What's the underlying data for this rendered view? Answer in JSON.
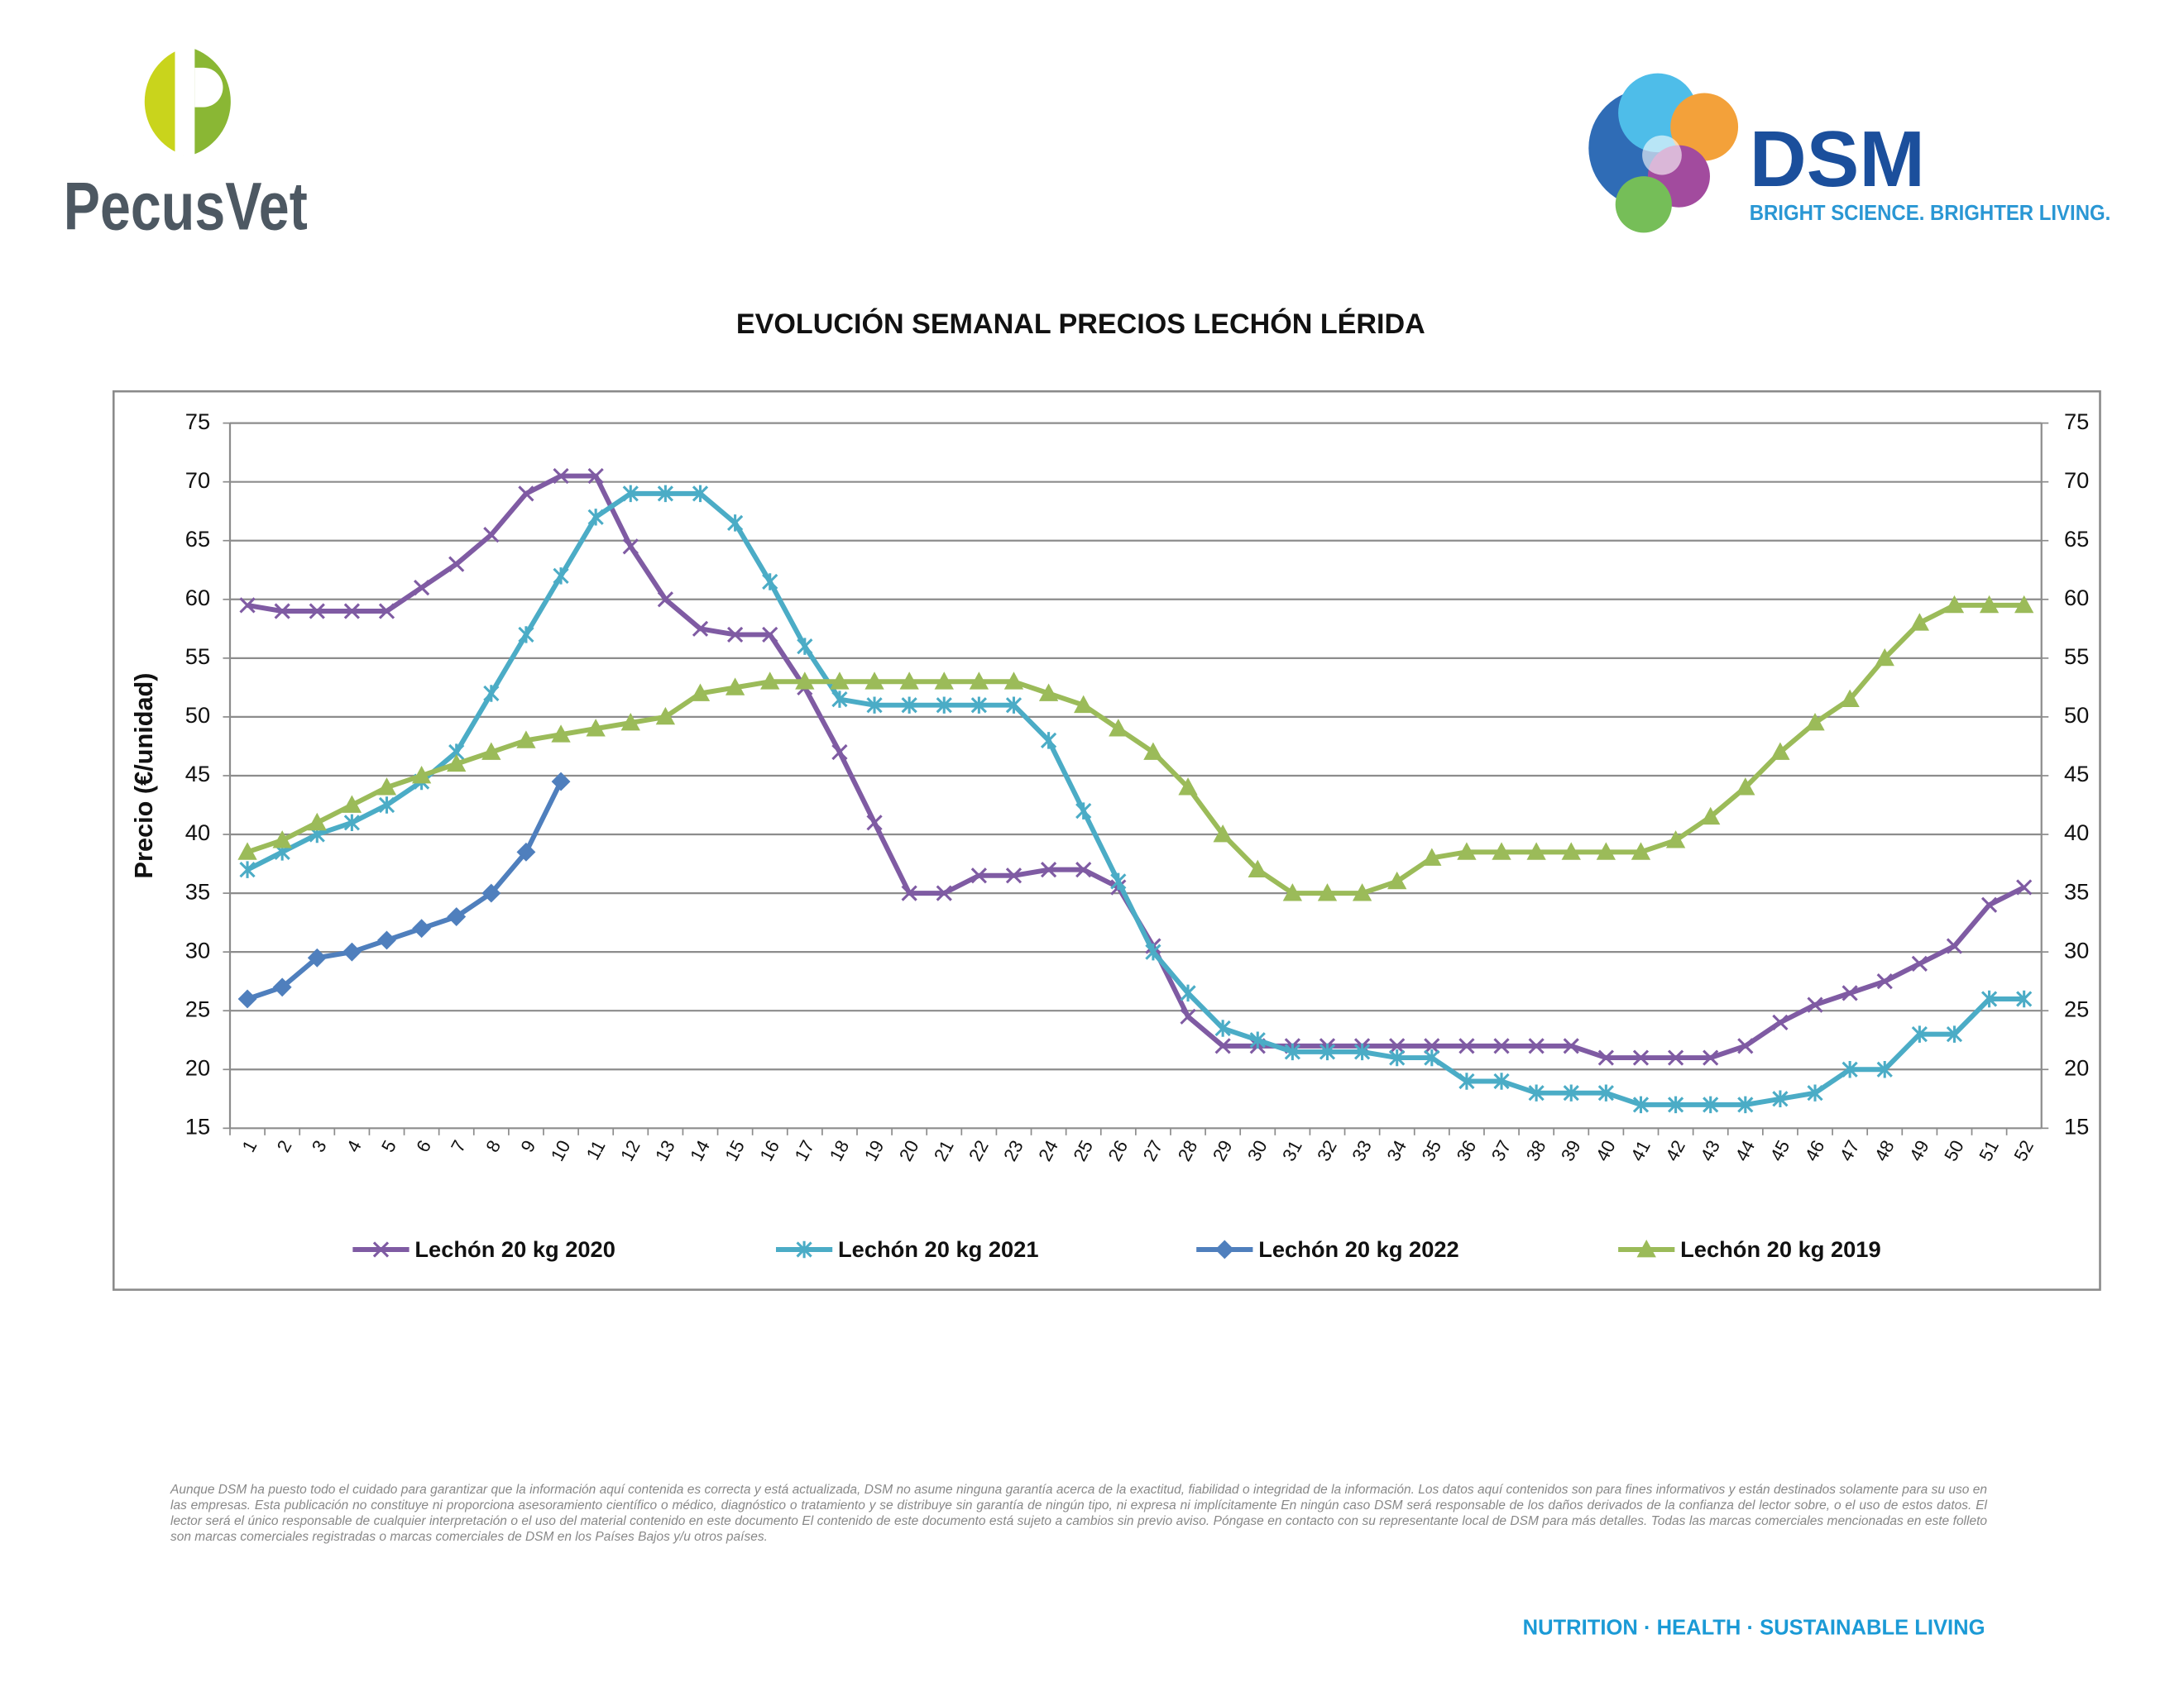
{
  "logos": {
    "left": "PecusVet",
    "right": "DSM",
    "tagline": "BRIGHT SCIENCE. BRIGHTER LIVING."
  },
  "disclaimer": "Aunque DSM ha puesto todo el cuidado para garantizar que la información aquí contenida es correcta y está actualizada, DSM no asume ninguna garantía acerca de la exactitud, fiabilidad o integridad de la información. Los datos aquí contenidos son para fines informativos y están destinados solamente para su uso en las empresas. Esta publicación no constituye ni proporciona asesoramiento científico o médico, diagnóstico o tratamiento y se distribuye sin garantía de ningún tipo, ni expresa ni implícitamente En ningún caso DSM será responsable de los daños derivados de la confianza del lector sobre, o el uso de estos datos. El lector será el único responsable de cualquier interpretación o el uso del material contenido en este documento El contenido de este documento está sujeto a cambios sin previo aviso. Póngase en contacto con su representante local de DSM para más detalles. Todas las marcas comerciales mencionadas en este folleto son marcas comerciales registradas o marcas comerciales de DSM en los Países Bajos y/u otros países.",
  "footer": "NUTRITION · HEALTH · SUSTAINABLE LIVING",
  "chart_data": {
    "type": "line",
    "title": "EVOLUCIÓN SEMANAL PRECIOS LECHÓN LÉRIDA",
    "y_label": "Precio (€/unidad)",
    "categories": [
      "1",
      "2",
      "3",
      "4",
      "5",
      "6",
      "7",
      "8",
      "9",
      "10",
      "11",
      "12",
      "13",
      "14",
      "15",
      "16",
      "17",
      "18",
      "19",
      "20",
      "21",
      "22",
      "23",
      "24",
      "25",
      "26",
      "27",
      "28",
      "29",
      "30",
      "31",
      "32",
      "33",
      "34",
      "35",
      "36",
      "37",
      "38",
      "39",
      "40",
      "41",
      "42",
      "43",
      "44",
      "45",
      "46",
      "47",
      "48",
      "49",
      "50",
      "51",
      "52"
    ],
    "ylim": [
      15,
      75
    ],
    "yticks": [
      15,
      20,
      25,
      30,
      35,
      40,
      45,
      50,
      55,
      60,
      65,
      70,
      75
    ],
    "y2lim": [
      15,
      75
    ],
    "y2ticks": [
      15,
      20,
      25,
      30,
      35,
      40,
      45,
      50,
      55,
      60,
      65,
      70,
      75
    ],
    "grid": true,
    "legend": "bottom",
    "series": [
      {
        "name": "Lechón 20 kg 2020",
        "color": "#7f5ba3",
        "marker": "x",
        "values": [
          59.5,
          59,
          59,
          59,
          59,
          61,
          63,
          65.5,
          69,
          70.5,
          70.5,
          64.5,
          60,
          57.5,
          57,
          57,
          52.5,
          47,
          41,
          35,
          35,
          36.5,
          36.5,
          37,
          37,
          35.5,
          30.5,
          24.5,
          22,
          22,
          22,
          22,
          22,
          22,
          22,
          22,
          22,
          22,
          22,
          21,
          21,
          21,
          21,
          22,
          24,
          25.5,
          26.5,
          27.5,
          29,
          30.5,
          34,
          35.5
        ]
      },
      {
        "name": "Lechón 20 kg 2021",
        "color": "#4bacc6",
        "marker": "star",
        "values": [
          37,
          38.5,
          40,
          41,
          42.5,
          44.5,
          47,
          52,
          57,
          62,
          67,
          69,
          69,
          69,
          66.5,
          61.5,
          56,
          51.5,
          51,
          51,
          51,
          51,
          51,
          48,
          42,
          36,
          30,
          26.5,
          23.5,
          22.5,
          21.5,
          21.5,
          21.5,
          21,
          21,
          19,
          19,
          18,
          18,
          18,
          17,
          17,
          17,
          17,
          17.5,
          18,
          20,
          20,
          23,
          23,
          26,
          26
        ]
      },
      {
        "name": "Lechón 20 kg 2022",
        "color": "#4f7fbd",
        "marker": "diamond",
        "values": [
          26,
          27,
          29.5,
          30,
          31,
          32,
          33,
          35,
          38.5,
          44.5,
          null,
          null,
          null,
          null,
          null,
          null,
          null,
          null,
          null,
          null,
          null,
          null,
          null,
          null,
          null,
          null,
          null,
          null,
          null,
          null,
          null,
          null,
          null,
          null,
          null,
          null,
          null,
          null,
          null,
          null,
          null,
          null,
          null,
          null,
          null,
          null,
          null,
          null,
          null,
          null,
          null,
          null
        ]
      },
      {
        "name": "Lechón 20 kg 2019",
        "color": "#9bbb59",
        "marker": "triangle",
        "values": [
          38.5,
          39.5,
          41,
          42.5,
          44,
          45,
          46,
          47,
          48,
          48.5,
          49,
          49.5,
          50,
          52,
          52.5,
          53,
          53,
          53,
          53,
          53,
          53,
          53,
          53,
          52,
          51,
          49,
          47,
          44,
          40,
          37,
          35,
          35,
          35,
          36,
          38,
          38.5,
          38.5,
          38.5,
          38.5,
          38.5,
          38.5,
          39.5,
          41.5,
          44,
          47,
          49.5,
          51.5,
          55,
          58,
          59.5,
          59.5,
          59.5
        ]
      }
    ]
  }
}
